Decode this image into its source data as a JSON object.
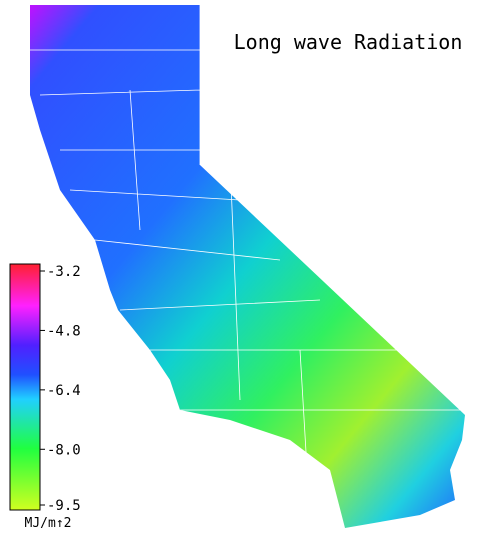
{
  "title": "Long wave Radiation",
  "colorbar": {
    "ticks": [
      -3.2,
      -4.8,
      -6.4,
      {
        "value": -8,
        "label": "-8.0"
      },
      -9.5
    ],
    "unit": "MJ/m↑2"
  }
}
